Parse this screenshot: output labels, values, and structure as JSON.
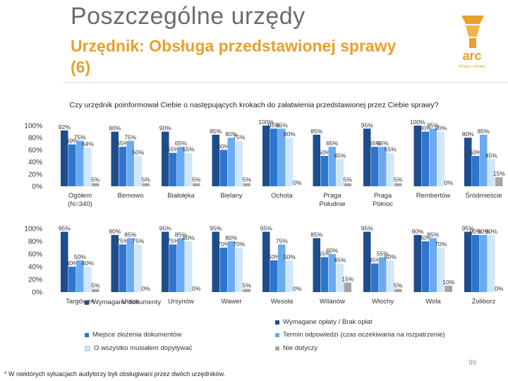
{
  "header": {
    "title": "Poszczególne urzędy",
    "subtitle": "Urzędnik: Obsługa przedstawionej sprawy (6)",
    "question": "Czy urzędnik poinformował Ciebie o następujących krokach do załatwienia przedstawionej przez Ciebie sprawy?"
  },
  "logo": {
    "text": "arc",
    "tagline": "RYNEK i OPINIE"
  },
  "footnote": "* W niektórych sytuacjach audytorzy byli obsługiwani przez dwóch urzędników.",
  "page_number": "99",
  "colors": {
    "series": [
      "#1e4d8c",
      "#2e75cf",
      "#6aaaf0",
      "#cfe6fb",
      "#a6a6a6"
    ],
    "title": "#6b6b6b",
    "subtitle": "#e8a02a"
  },
  "chart_data": {
    "type": "bar",
    "question": "Czy urzędnik poinformował Ciebie o następujących krokach do załatwienia przedstawionej przez Ciebie sprawy?",
    "ylim": [
      0,
      100
    ],
    "y_ticks": [
      "100%",
      "80%",
      "60%",
      "40%",
      "20%",
      "0%"
    ],
    "legend": [
      "Wymagane dokumenty",
      "Wymagane opłaty / Brak opłat",
      "Miejsce złożenia dokumentów",
      "Termin odpowiedzi (czas oczekiwania na rozpatrzenie)",
      "O wszystko musiałem dopytywać",
      "Nie dotyczy"
    ],
    "legend_series_index": [
      0,
      0,
      1,
      2,
      3,
      4
    ],
    "panels": [
      {
        "groups": [
          {
            "label": "Ogółem (N=340)",
            "values": [
              92,
              69,
              75,
              64,
              5
            ]
          },
          {
            "label": "Bemowo",
            "values": [
              90,
              65,
              75,
              50,
              5
            ]
          },
          {
            "label": "Białołęka",
            "values": [
              90,
              55,
              65,
              55,
              5
            ]
          },
          {
            "label": "Bielany",
            "values": [
              85,
              60,
              80,
              75,
              5
            ]
          },
          {
            "label": "Ochota",
            "values": [
              100,
              95,
              95,
              80,
              0
            ]
          },
          {
            "label": "Praga Południe",
            "values": [
              85,
              50,
              65,
              45,
              5
            ]
          },
          {
            "label": "Praga Północ",
            "values": [
              95,
              65,
              65,
              55,
              5
            ]
          },
          {
            "label": "Rembertów",
            "values": [
              100,
              90,
              95,
              90,
              0
            ]
          },
          {
            "label": "Śródmieście",
            "values": [
              80,
              50,
              85,
              45,
              15
            ]
          }
        ]
      },
      {
        "groups": [
          {
            "label": "Targówek",
            "values": [
              95,
              40,
              50,
              40,
              5
            ]
          },
          {
            "label": "Ursus",
            "values": [
              90,
              75,
              85,
              75,
              0
            ]
          },
          {
            "label": "Ursynów",
            "values": [
              95,
              75,
              85,
              80,
              0
            ]
          },
          {
            "label": "Wawer",
            "values": [
              95,
              70,
              80,
              70,
              5
            ]
          },
          {
            "label": "Wesoła",
            "values": [
              95,
              50,
              75,
              50,
              0
            ]
          },
          {
            "label": "Wilanów",
            "values": [
              85,
              55,
              60,
              45,
              15
            ]
          },
          {
            "label": "Włochy",
            "values": [
              95,
              45,
              55,
              50,
              5
            ]
          },
          {
            "label": "Wola",
            "values": [
              90,
              80,
              85,
              70,
              10
            ]
          },
          {
            "label": "Żoliborz",
            "values": [
              95,
              90,
              90,
              90,
              0
            ]
          }
        ]
      }
    ]
  }
}
